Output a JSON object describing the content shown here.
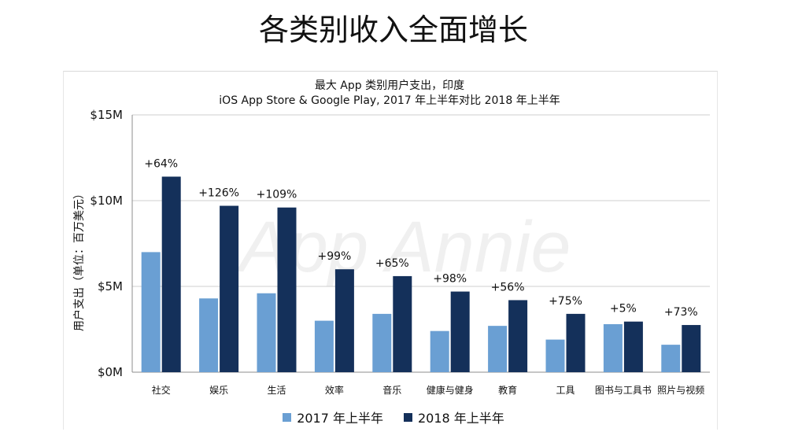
{
  "page": {
    "title": "各类别收入全面增长"
  },
  "chart_data": {
    "type": "bar",
    "title": "最大 App 类别用户支出，印度",
    "subtitle": "iOS App Store & Google Play, 2017 年上半年对比 2018 年上半年",
    "ylabel": "用户支出（单位：百万美元）",
    "xlabel": "",
    "ylim": [
      0,
      15
    ],
    "yticks": [
      0,
      5,
      10,
      15
    ],
    "ytick_labels": [
      "$0M",
      "$5M",
      "$10M",
      "$15M"
    ],
    "grid": true,
    "legend_position": "bottom",
    "watermark": "App Annie",
    "categories": [
      "社交",
      "娱乐",
      "生活",
      "效率",
      "音乐",
      "健康与健身",
      "教育",
      "工具",
      "图书与工具书",
      "照片与视频"
    ],
    "series": [
      {
        "name": "2017 年上半年",
        "color": "#6a9fd3",
        "values": [
          7.0,
          4.3,
          4.6,
          3.0,
          3.4,
          2.4,
          2.7,
          1.9,
          2.8,
          1.6
        ]
      },
      {
        "name": "2018 年上半年",
        "color": "#14305a",
        "values": [
          11.4,
          9.7,
          9.6,
          6.0,
          5.6,
          4.7,
          4.2,
          3.4,
          2.95,
          2.75
        ]
      }
    ],
    "growth_labels": [
      "+64%",
      "+126%",
      "+109%",
      "+99%",
      "+65%",
      "+98%",
      "+56%",
      "+75%",
      "+5%",
      "+73%"
    ]
  }
}
